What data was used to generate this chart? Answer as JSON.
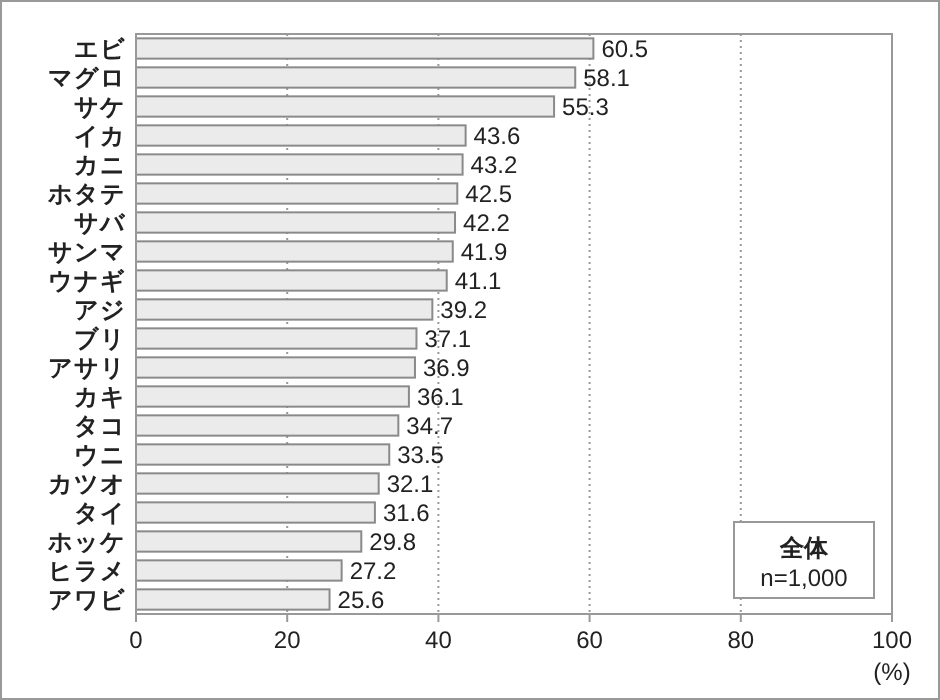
{
  "chart_data": {
    "type": "bar",
    "orientation": "horizontal",
    "categories": [
      "エビ",
      "マグロ",
      "サケ",
      "イカ",
      "カニ",
      "ホタテ",
      "サバ",
      "サンマ",
      "ウナギ",
      "アジ",
      "ブリ",
      "アサリ",
      "カキ",
      "タコ",
      "ウニ",
      "カツオ",
      "タイ",
      "ホッケ",
      "ヒラメ",
      "アワビ"
    ],
    "values": [
      60.5,
      58.1,
      55.3,
      43.6,
      43.2,
      42.5,
      42.2,
      41.9,
      41.1,
      39.2,
      37.1,
      36.9,
      36.1,
      34.7,
      33.5,
      32.1,
      31.6,
      29.8,
      27.2,
      25.6
    ],
    "color": "#ebebeb",
    "xlim": [
      0,
      100
    ],
    "xticks": [
      0,
      20,
      40,
      60,
      80,
      100
    ],
    "xlabel": "(%)",
    "grid": "x",
    "data_labels": true,
    "annotations": [
      "全体",
      "n=1,000"
    ]
  }
}
